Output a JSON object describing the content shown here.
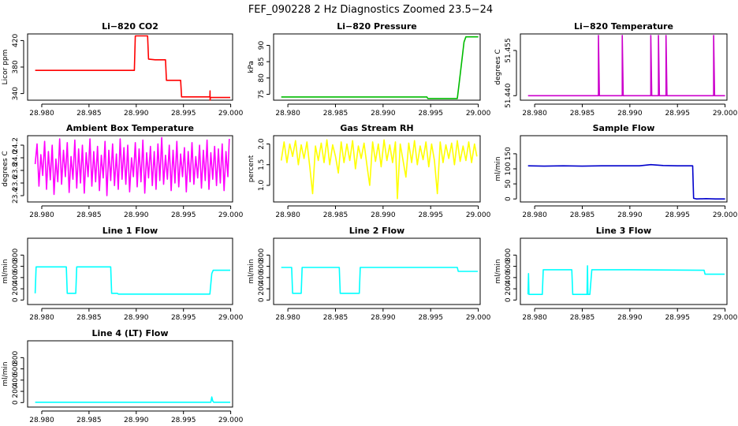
{
  "figure": {
    "title": "FEF_090228  2 Hz Diagnostics Zoomed 23.5−24"
  },
  "chart_data": [
    {
      "type": "line",
      "title": "Li−820 CO2",
      "ylabel": "Licor ppm",
      "color": "#ff0000",
      "xlim": [
        28.9785,
        29.0002
      ],
      "ylim": [
        330,
        430
      ],
      "xticks": [
        28.98,
        28.985,
        28.99,
        28.995,
        29.0
      ],
      "xtick_labels": [
        "28.980",
        "28.985",
        "28.990",
        "28.995",
        "29.000"
      ],
      "yticks": [
        340,
        380,
        420
      ],
      "ytick_labels": [
        "340",
        "380",
        "420"
      ],
      "series": [
        {
          "x": [
            28.9793,
            28.98,
            28.982,
            28.984,
            28.986,
            28.988,
            28.9898,
            28.9899,
            28.9912,
            28.9913,
            28.992,
            28.9931,
            28.9932,
            28.9947,
            28.9948,
            28.9975,
            28.9978,
            28.99781,
            28.99782,
            28.99785,
            28.9985,
            28.9995,
            28.99995
          ],
          "y": [
            375,
            375,
            375,
            375,
            375,
            375,
            375,
            427,
            427,
            392,
            391,
            391,
            360,
            360,
            335,
            335,
            335,
            344,
            330,
            334,
            334,
            334,
            334
          ]
        }
      ]
    },
    {
      "type": "line",
      "title": "Li−820 Pressure",
      "ylabel": "kPa",
      "color": "#00bb00",
      "xlim": [
        28.9785,
        29.0002
      ],
      "ylim": [
        73.2,
        93.5
      ],
      "xticks": [
        28.98,
        28.985,
        28.99,
        28.995,
        29.0
      ],
      "xtick_labels": [
        "28.980",
        "28.985",
        "28.990",
        "28.995",
        "29.000"
      ],
      "yticks": [
        75,
        80,
        85,
        90
      ],
      "ytick_labels": [
        "75",
        "80",
        "85",
        "90"
      ],
      "series": [
        {
          "x": [
            28.9793,
            28.985,
            28.99,
            28.9946,
            28.9947,
            28.9978,
            28.998,
            28.9983,
            28.9985,
            28.9987,
            29.0
          ],
          "y": [
            74.2,
            74.2,
            74.2,
            74.2,
            73.7,
            73.7,
            78.5,
            86,
            91,
            92.6,
            92.6
          ]
        }
      ]
    },
    {
      "type": "line",
      "title": "Li−820 Temperature",
      "ylabel": "degrees C",
      "color": "#cc00cc",
      "xlim": [
        28.9785,
        29.0002
      ],
      "ylim": [
        51.4385,
        51.4605
      ],
      "xticks": [
        28.98,
        28.985,
        28.99,
        28.995,
        29.0
      ],
      "xtick_labels": [
        "28.980",
        "28.985",
        "28.990",
        "28.995",
        "29.000"
      ],
      "yticks": [
        51.44,
        51.455
      ],
      "ytick_labels": [
        "51.440",
        "51.455"
      ],
      "series": [
        {
          "x": [
            28.9793,
            28.9867,
            28.9867,
            28.9868,
            28.9892,
            28.9892,
            28.9893,
            28.9922,
            28.9922,
            28.9923,
            28.993,
            28.993,
            28.9931,
            28.9938,
            28.9938,
            28.9939,
            28.9988,
            28.9988,
            28.9989,
            29.0
          ],
          "y": [
            51.44,
            51.44,
            51.46,
            51.44,
            51.44,
            51.46,
            51.44,
            51.44,
            51.46,
            51.44,
            51.44,
            51.46,
            51.44,
            51.44,
            51.46,
            51.44,
            51.44,
            51.46,
            51.44,
            51.44
          ]
        }
      ]
    },
    {
      "type": "line",
      "title": "Ambient Box Temperature",
      "ylabel": "degrees C",
      "color": "#ff00ff",
      "xlim": [
        28.9785,
        29.0002
      ],
      "ylim": [
        23.3,
        24.35
      ],
      "xticks": [
        28.98,
        28.985,
        28.99,
        28.995,
        29.0
      ],
      "xtick_labels": [
        "28.980",
        "28.985",
        "28.990",
        "28.995",
        "29.000"
      ],
      "yticks": [
        23.4,
        23.6,
        23.8,
        24.0,
        24.2
      ],
      "ytick_labels": [
        "23.4",
        "23.6",
        "23.8",
        "24.0",
        "24.2"
      ],
      "series": [
        {
          "x": [
            28.9793,
            28.9795,
            28.9797,
            28.9799,
            28.9801,
            28.9803,
            28.9805,
            28.9807,
            28.9809,
            28.9811,
            28.9813,
            28.9815,
            28.9817,
            28.9819,
            28.9821,
            28.9823,
            28.9825,
            28.9827,
            28.9829,
            28.9831,
            28.9833,
            28.9835,
            28.9837,
            28.9839,
            28.9841,
            28.9843,
            28.9845,
            28.9847,
            28.9849,
            28.9851,
            28.9853,
            28.9855,
            28.9857,
            28.9859,
            28.9861,
            28.9863,
            28.9865,
            28.9867,
            28.9869,
            28.9871,
            28.9873,
            28.9875,
            28.9877,
            28.9879,
            28.9881,
            28.9883,
            28.9885,
            28.9887,
            28.9889,
            28.9891,
            28.9893,
            28.9895,
            28.9897,
            28.9899,
            28.9901,
            28.9903,
            28.9905,
            28.9907,
            28.9909,
            28.9911,
            28.9913,
            28.9915,
            28.9917,
            28.9919,
            28.9921,
            28.9923,
            28.9925,
            28.9927,
            28.9929,
            28.9931,
            28.9933,
            28.9935,
            28.9937,
            28.9939,
            28.9941,
            28.9943,
            28.9945,
            28.9947,
            28.9949,
            28.9951,
            28.9953,
            28.9955,
            28.9957,
            28.9959,
            28.9961,
            28.9963,
            28.9965,
            28.9967,
            28.9969,
            28.9971,
            28.9973,
            28.9975,
            28.9977,
            28.9979,
            28.9981,
            28.9983,
            28.9985,
            28.9987,
            28.9989,
            28.9991,
            28.9993,
            28.9995,
            28.9997,
            28.99985
          ],
          "y": [
            23.9,
            24.22,
            23.55,
            24.05,
            23.72,
            24.26,
            23.5,
            24.1,
            23.65,
            24.2,
            23.42,
            23.98,
            23.62,
            24.3,
            23.58,
            24.12,
            23.7,
            24.24,
            23.45,
            24.02,
            23.66,
            24.28,
            23.52,
            24.14,
            23.6,
            24.2,
            23.44,
            24.08,
            23.7,
            24.3,
            23.55,
            24.1,
            23.62,
            24.18,
            23.48,
            24.04,
            23.68,
            24.26,
            23.4,
            24.12,
            23.64,
            24.22,
            23.56,
            24.06,
            23.5,
            24.3,
            23.66,
            24.16,
            23.58,
            24.2,
            23.46,
            24.0,
            23.7,
            24.24,
            23.54,
            24.14,
            23.62,
            24.28,
            23.44,
            24.08,
            23.68,
            24.18,
            23.56,
            24.1,
            23.5,
            24.22,
            23.64,
            24.32,
            23.58,
            24.04,
            23.66,
            24.2,
            23.48,
            24.12,
            23.6,
            24.26,
            23.54,
            24.06,
            23.7,
            24.16,
            23.46,
            24.1,
            23.62,
            24.24,
            23.58,
            24.02,
            23.68,
            24.2,
            23.52,
            24.12,
            23.64,
            24.28,
            23.5,
            24.08,
            23.66,
            24.18,
            23.56,
            24.14,
            23.6,
            24.22,
            23.48,
            24.1,
            23.7,
            24.3
          ]
        }
      ]
    },
    {
      "type": "line",
      "title": "Gas Stream RH",
      "ylabel": "percent",
      "color": "#ffff00",
      "xlim": [
        28.9785,
        29.0002
      ],
      "ylim": [
        0.6,
        2.2
      ],
      "xticks": [
        28.98,
        28.985,
        28.99,
        28.995,
        29.0
      ],
      "xtick_labels": [
        "28.980",
        "28.985",
        "28.990",
        "28.995",
        "29.000"
      ],
      "yticks": [
        1.0,
        1.5,
        2.0
      ],
      "ytick_labels": [
        "1.0",
        "1.5",
        "2.0"
      ],
      "series": [
        {
          "x": [
            28.9793,
            28.9796,
            28.9799,
            28.9802,
            28.9805,
            28.9808,
            28.9811,
            28.9814,
            28.9817,
            28.982,
            28.9823,
            28.9826,
            28.9829,
            28.9832,
            28.9835,
            28.9838,
            28.9841,
            28.9844,
            28.9847,
            28.985,
            28.9853,
            28.9856,
            28.9859,
            28.9862,
            28.9865,
            28.9868,
            28.9871,
            28.9874,
            28.9877,
            28.988,
            28.9883,
            28.9886,
            28.9889,
            28.9892,
            28.9895,
            28.9898,
            28.9901,
            28.9904,
            28.9907,
            28.991,
            28.9913,
            28.9915,
            28.9918,
            28.9921,
            28.9924,
            28.9927,
            28.993,
            28.9933,
            28.9936,
            28.9939,
            28.9942,
            28.9945,
            28.9948,
            28.9951,
            28.9954,
            28.9957,
            28.996,
            28.9963,
            28.9966,
            28.9969,
            28.9972,
            28.9975,
            28.9978,
            28.9981,
            28.9984,
            28.9987,
            28.999,
            28.9993,
            28.9996,
            28.99985
          ],
          "y": [
            1.6,
            2.05,
            1.55,
            2.0,
            1.7,
            2.08,
            1.5,
            1.98,
            1.65,
            2.05,
            1.45,
            0.8,
            1.95,
            1.6,
            2.02,
            1.55,
            2.1,
            1.5,
            1.98,
            1.7,
            1.3,
            2.05,
            1.55,
            2.0,
            1.6,
            2.08,
            1.4,
            1.95,
            1.65,
            2.02,
            1.5,
            1.0,
            2.05,
            1.58,
            2.0,
            1.45,
            2.1,
            1.6,
            1.98,
            1.55,
            2.05,
            0.68,
            2.0,
            1.6,
            1.2,
            2.02,
            1.55,
            2.08,
            1.5,
            1.95,
            1.62,
            2.05,
            1.45,
            2.0,
            1.6,
            0.8,
            2.05,
            1.55,
            1.98,
            1.65,
            2.02,
            1.5,
            2.08,
            1.58,
            1.95,
            1.6,
            2.05,
            1.55,
            2.0,
            1.7
          ]
        }
      ]
    },
    {
      "type": "line",
      "title": "Sample Flow",
      "ylabel": "ml/min",
      "color": "#0000cc",
      "xlim": [
        28.9785,
        29.0002
      ],
      "ylim": [
        -10,
        210
      ],
      "xticks": [
        28.98,
        28.985,
        28.99,
        28.995,
        29.0
      ],
      "xtick_labels": [
        "28.980",
        "28.985",
        "28.990",
        "28.995",
        "29.000"
      ],
      "yticks": [
        0,
        50,
        100,
        150
      ],
      "ytick_labels": [
        "0",
        "50",
        "100",
        "150"
      ],
      "series": [
        {
          "x": [
            28.9793,
            28.981,
            28.983,
            28.985,
            28.987,
            28.989,
            28.991,
            28.9922,
            28.9935,
            28.995,
            28.9966,
            28.9967,
            28.997,
            28.998,
            28.999,
            29.0
          ],
          "y": [
            110,
            109,
            110,
            109,
            110,
            110,
            110,
            114,
            111,
            110,
            110,
            2,
            0,
            1,
            0,
            0
          ]
        }
      ]
    },
    {
      "type": "line",
      "title": "Line 1 Flow",
      "ylabel": "ml/min",
      "color": "#00ffff",
      "xlim": [
        28.9785,
        29.0002
      ],
      "ylim": [
        -80,
        1100
      ],
      "xticks": [
        28.98,
        28.985,
        28.99,
        28.995,
        29.0
      ],
      "xtick_labels": [
        "28.980",
        "28.985",
        "28.990",
        "28.995",
        "29.000"
      ],
      "yticks": [
        0,
        200,
        400,
        600,
        800
      ],
      "ytick_labels": [
        "0",
        "200",
        "400",
        "600",
        "800"
      ],
      "series": [
        {
          "x": [
            28.9793,
            28.9794,
            28.9826,
            28.9827,
            28.9836,
            28.9837,
            28.9873,
            28.9874,
            28.988,
            28.9881,
            28.9978,
            28.998,
            28.99815,
            28.99995
          ],
          "y": [
            120,
            590,
            590,
            120,
            120,
            590,
            590,
            120,
            120,
            105,
            105,
            470,
            530,
            530
          ]
        }
      ]
    },
    {
      "type": "line",
      "title": "Line 2 Flow",
      "ylabel": "ml/min",
      "color": "#00ffff",
      "xlim": [
        28.9785,
        29.0002
      ],
      "ylim": [
        -80,
        1100
      ],
      "xticks": [
        28.98,
        28.985,
        28.99,
        28.995,
        29.0
      ],
      "xtick_labels": [
        "28.980",
        "28.985",
        "28.990",
        "28.995",
        "29.000"
      ],
      "yticks": [
        0,
        200,
        400,
        600,
        800
      ],
      "ytick_labels": [
        "0",
        "200",
        "400",
        "600",
        "800"
      ],
      "series": [
        {
          "x": [
            28.9793,
            28.9804,
            28.9805,
            28.9814,
            28.9815,
            28.9854,
            28.9855,
            28.9875,
            28.9876,
            28.9978,
            28.9979,
            28.99995
          ],
          "y": [
            580,
            580,
            120,
            120,
            580,
            580,
            120,
            120,
            580,
            580,
            510,
            510
          ]
        }
      ]
    },
    {
      "type": "line",
      "title": "Line 3 Flow",
      "ylabel": "ml/min",
      "color": "#00ffff",
      "xlim": [
        28.9785,
        29.0002
      ],
      "ylim": [
        -80,
        1100
      ],
      "xticks": [
        28.98,
        28.985,
        28.99,
        28.995,
        29.0
      ],
      "xtick_labels": [
        "28.980",
        "28.985",
        "28.990",
        "28.995",
        "29.000"
      ],
      "yticks": [
        0,
        200,
        400,
        600,
        800
      ],
      "ytick_labels": [
        "0",
        "200",
        "400",
        "600",
        "800"
      ],
      "series": [
        {
          "x": [
            28.9793,
            28.97935,
            28.9794,
            28.9808,
            28.9809,
            28.9812,
            28.9839,
            28.984,
            28.9855,
            28.98555,
            28.9856,
            28.9858,
            28.986,
            28.99,
            28.9978,
            28.9979,
            28.99995
          ],
          "y": [
            100,
            470,
            100,
            100,
            540,
            540,
            540,
            100,
            100,
            610,
            100,
            100,
            540,
            540,
            530,
            460,
            460
          ]
        }
      ]
    },
    {
      "type": "line",
      "title": "Line 4 (LT) Flow",
      "ylabel": "ml/min",
      "color": "#00ffff",
      "xlim": [
        28.9785,
        29.0002
      ],
      "ylim": [
        -80,
        1100
      ],
      "xticks": [
        28.98,
        28.985,
        28.99,
        28.995,
        29.0
      ],
      "xtick_labels": [
        "28.980",
        "28.985",
        "28.990",
        "28.995",
        "29.000"
      ],
      "yticks": [
        0,
        200,
        400,
        600,
        800
      ],
      "ytick_labels": [
        "0",
        "200",
        "400",
        "600",
        "800"
      ],
      "series": [
        {
          "x": [
            28.9793,
            28.985,
            28.99,
            28.995,
            28.9979,
            28.998,
            28.9981,
            28.9982,
            28.9985,
            28.99995
          ],
          "y": [
            5,
            5,
            5,
            5,
            5,
            100,
            30,
            5,
            5,
            5
          ]
        }
      ]
    }
  ]
}
